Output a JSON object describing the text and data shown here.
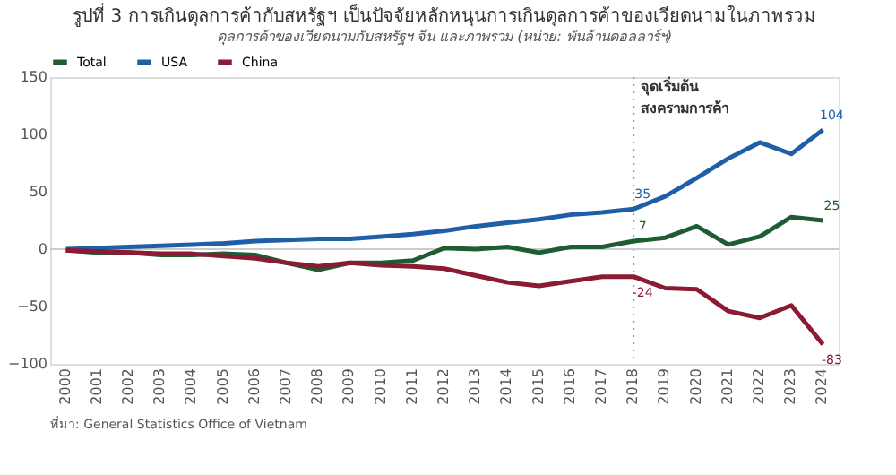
{
  "chart_data": {
    "type": "line",
    "title": "รูปที่ 3 การเกินดุลการค้ากับสหรัฐฯ เป็นปัจจัยหลักหนุนการเกินดุลการค้าของเวียดนามในภาพรวม",
    "subtitle": "ดุลการค้าของเวียดนามกับสหรัฐฯ จีน และภาพรวม (หน่วย: พันล้านดอลลาร์ฯ)",
    "categories": [
      "2000",
      "2001",
      "2002",
      "2003",
      "2004",
      "2005",
      "2006",
      "2007",
      "2008",
      "2009",
      "2010",
      "2011",
      "2012",
      "2013",
      "2014",
      "2015",
      "2016",
      "2017",
      "2018",
      "2019",
      "2020",
      "2021",
      "2022",
      "2023",
      "2024"
    ],
    "series": [
      {
        "name": "Total",
        "color": "#1e5c32",
        "values": [
          -1,
          -3,
          -3,
          -5,
          -5,
          -4,
          -5,
          -12,
          -18,
          -12,
          -12,
          -10,
          1,
          0,
          2,
          -3,
          2,
          2,
          7,
          10,
          20,
          4,
          11,
          28,
          25
        ],
        "value_labels": [
          null,
          null,
          null,
          null,
          null,
          null,
          null,
          null,
          null,
          null,
          null,
          null,
          null,
          null,
          null,
          null,
          null,
          null,
          "7",
          null,
          null,
          null,
          null,
          null,
          "25"
        ]
      },
      {
        "name": "USA",
        "color": "#1f5fa8",
        "values": [
          0,
          1,
          2,
          3,
          4,
          5,
          7,
          8,
          9,
          9,
          11,
          13,
          16,
          20,
          23,
          26,
          30,
          32,
          35,
          46,
          62,
          79,
          93,
          83,
          104
        ],
        "value_labels": [
          null,
          null,
          null,
          null,
          null,
          null,
          null,
          null,
          null,
          null,
          null,
          null,
          null,
          null,
          null,
          null,
          null,
          null,
          "35",
          null,
          null,
          null,
          null,
          null,
          "104"
        ]
      },
      {
        "name": "China",
        "color": "#8b1a33",
        "values": [
          -1,
          -2,
          -3,
          -4,
          -4,
          -6,
          -8,
          -12,
          -15,
          -12,
          -14,
          -15,
          -17,
          -23,
          -29,
          -32,
          -28,
          -24,
          -24,
          -34,
          -35,
          -54,
          -60,
          -49,
          -83
        ],
        "value_labels": [
          null,
          null,
          null,
          null,
          null,
          null,
          null,
          null,
          null,
          null,
          null,
          null,
          null,
          null,
          null,
          null,
          null,
          null,
          "-24",
          null,
          null,
          null,
          null,
          null,
          "-83"
        ]
      }
    ],
    "ylim": [
      -100,
      150
    ],
    "yticks": [
      -100,
      -50,
      0,
      50,
      100,
      150
    ],
    "grid": false,
    "legend": "top",
    "line_style": "solid",
    "marker": "none",
    "ref_lines": [
      {
        "axis": "x",
        "value": "2018",
        "label": "จุดเริ่มต้น สงครามการค้า",
        "color": "#999999",
        "line_style": "dotted"
      },
      {
        "axis": "y",
        "value": 0,
        "color": "#cccccc",
        "line_style": "solid"
      }
    ],
    "annotations": [
      "ที่มา: General Statistics Office of Vietnam"
    ]
  }
}
